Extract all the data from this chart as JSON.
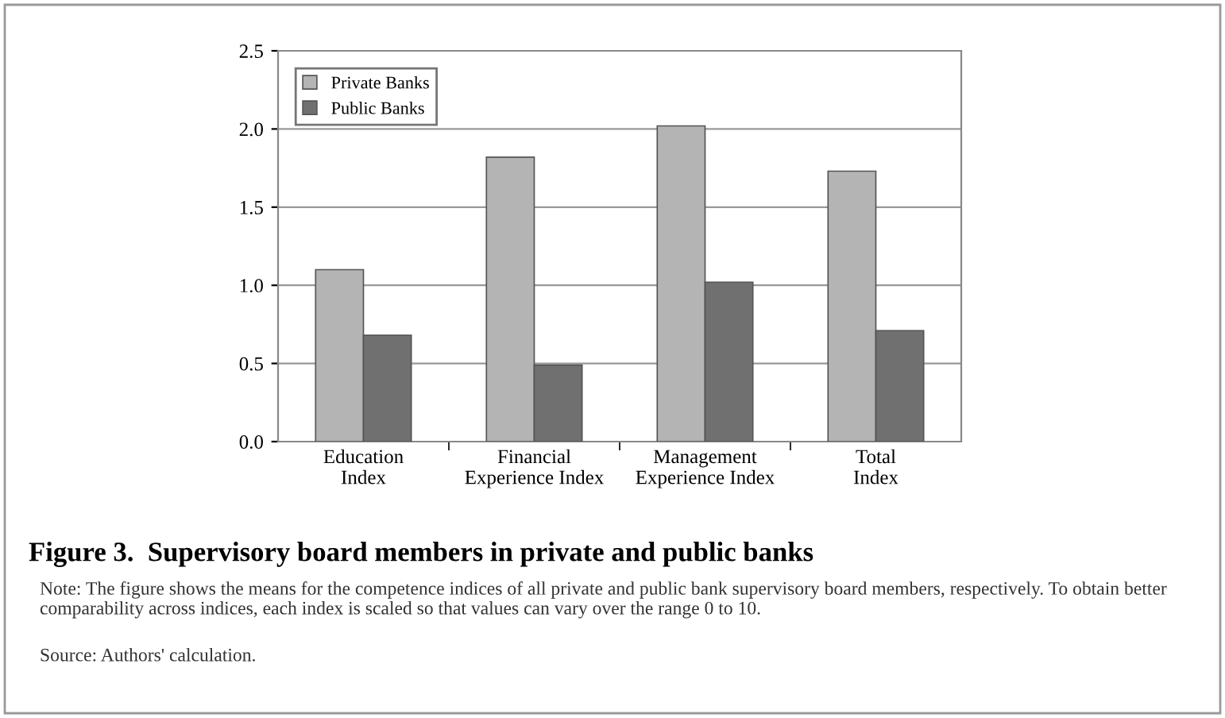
{
  "chart_data": {
    "type": "bar",
    "title": "Figure 3.  Supervisory board members in private and public banks",
    "categories": [
      "Education\nIndex",
      "Financial\nExperience Index",
      "Management\nExperience Index",
      "Total\nIndex"
    ],
    "series": [
      {
        "name": "Private Banks",
        "color": "#b4b4b4",
        "values": [
          1.1,
          1.82,
          2.02,
          1.73
        ]
      },
      {
        "name": "Public Banks",
        "color": "#707070",
        "values": [
          0.68,
          0.49,
          1.02,
          0.71
        ]
      }
    ],
    "ylim": [
      0,
      2.5
    ],
    "yticks": [
      {
        "value": 0,
        "label": "0.0"
      },
      {
        "value": 0.5,
        "label": "0.5"
      },
      {
        "value": 1,
        "label": "1.0"
      },
      {
        "value": 1.5,
        "label": "1.5"
      },
      {
        "value": 2,
        "label": "2.0"
      },
      {
        "value": 2.5,
        "label": "2.5"
      }
    ],
    "grid": "y",
    "legend": "top left",
    "annotations": [
      "Note: The figure shows the means for the competence indices of all private and public bank supervisory board members, respectively. To obtain better comparability across indices, each index is scaled so that values can vary over the range 0 to 10.",
      "Source: Authors' calculation."
    ]
  }
}
